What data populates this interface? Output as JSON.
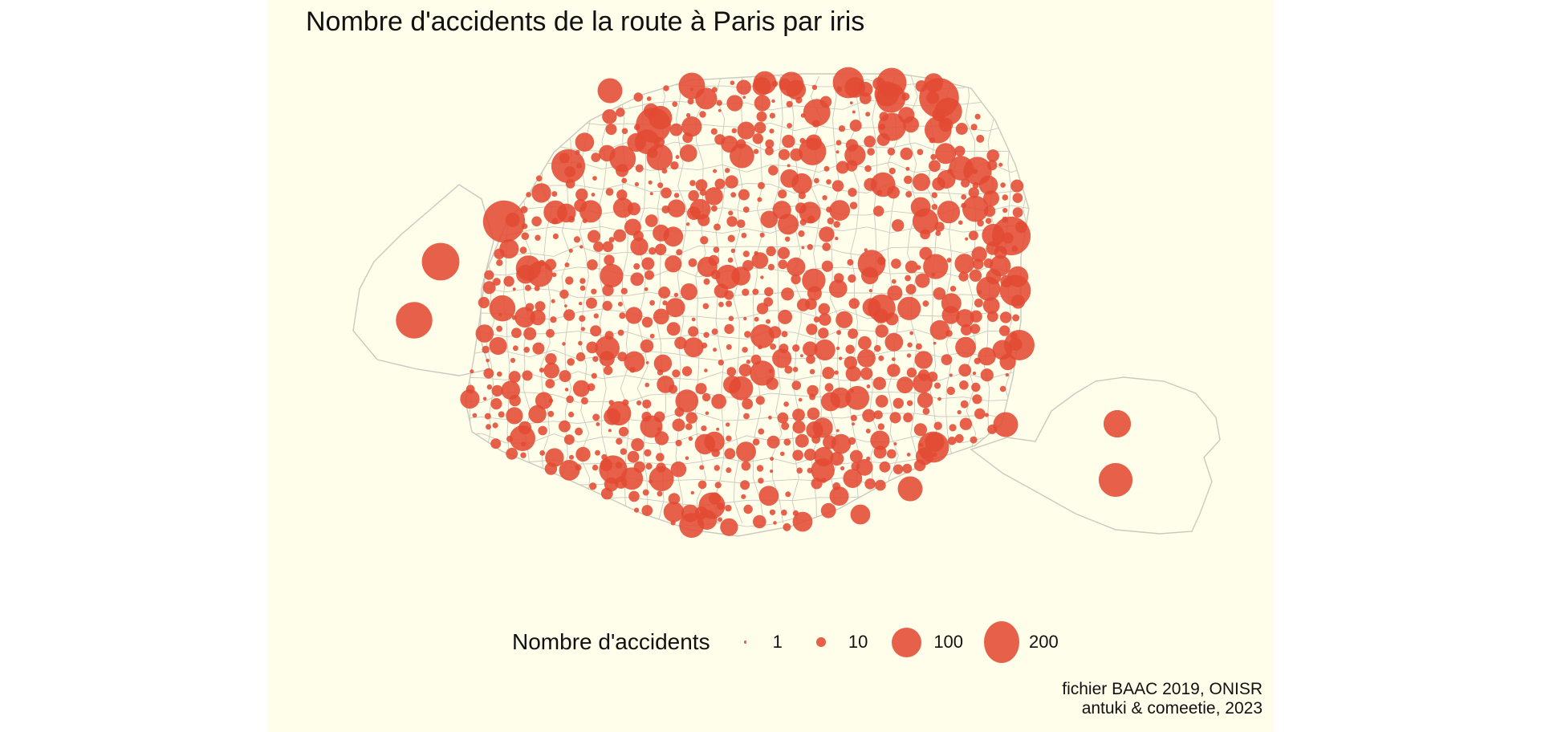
{
  "title": "Nombre d'accidents de la route à Paris par iris",
  "colors": {
    "panel_background": "#fffeea",
    "bubble": "#e24a33",
    "boundary": "#c9c9c0"
  },
  "legend": {
    "title": "Nombre d'accidents",
    "items": [
      {
        "label": "1",
        "value": 1
      },
      {
        "label": "10",
        "value": 10
      },
      {
        "label": "100",
        "value": 100
      },
      {
        "label": "200",
        "value": 200
      }
    ]
  },
  "caption": {
    "line1": "fichier BAAC 2019, ONISR",
    "line2": "antuki & comeetie, 2023"
  }
}
